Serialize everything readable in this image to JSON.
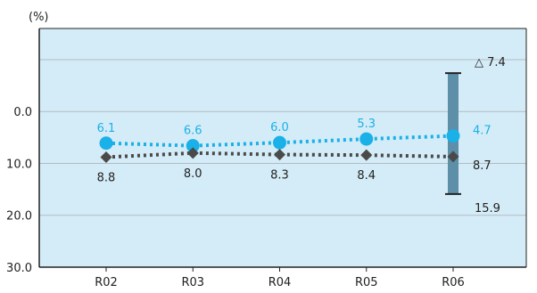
{
  "chart_data": {
    "type": "line",
    "unit_label": "(%)",
    "categories": [
      "R02",
      "R03",
      "R04",
      "R05",
      "R06"
    ],
    "y_ticks": [
      "0.0",
      "10.0",
      "20.0",
      "30.0"
    ],
    "y_tick_values": [
      0,
      10,
      20,
      30
    ],
    "ylim": [
      -16,
      30
    ],
    "y_inverted": true,
    "grid": true,
    "series": [
      {
        "values": [
          6.1,
          6.6,
          6.0,
          5.3,
          4.7
        ],
        "labels": [
          "6.1",
          "6.6",
          "6.0",
          "5.3",
          "4.7"
        ],
        "color": "#1ab0e8",
        "marker": "circle",
        "line": "dotted"
      },
      {
        "values": [
          8.8,
          8.0,
          8.3,
          8.4,
          8.7
        ],
        "labels": [
          "8.8",
          "8.0",
          "8.3",
          "8.4",
          "8.7"
        ],
        "color": "#4a4a4a",
        "marker": "diamond",
        "line": "dotted"
      }
    ],
    "range_bar": {
      "category": "R06",
      "low": -7.4,
      "high": 15.9,
      "low_label": "△ 7.4",
      "high_label": "15.9",
      "color": "#5e8fa8"
    },
    "plot_background": "#d4ecf7"
  }
}
